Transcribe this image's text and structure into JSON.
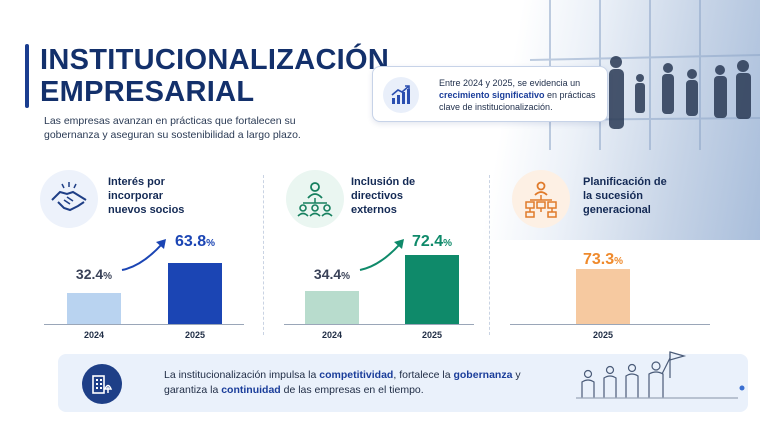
{
  "header": {
    "title_line1": "INSTITUCIONALIZACIÓN",
    "title_line2": "EMPRESARIAL",
    "subtitle": "Las empresas avanzan en prácticas que fortalecen su gobernanza y aseguran su sostenibilidad a largo plazo."
  },
  "callout": {
    "text_before": "Entre 2024 y 2025, se evidencia un ",
    "highlight": "crecimiento significativo",
    "text_after": " en prácticas clave de institucionalización."
  },
  "colors": {
    "navy": "#13306b",
    "card1_2024": "#b9d3f0",
    "card1_2025": "#1b45b4",
    "card2_2024": "#b8dccd",
    "card2_2025": "#0f8a6a",
    "card3_2025": "#f6c9a0",
    "card3_label": "#ef8a2c"
  },
  "chart_data": [
    {
      "type": "bar",
      "title": "Interés por incorporar nuevos socios",
      "categories": [
        "2024",
        "2025"
      ],
      "values": [
        32.4,
        63.8
      ],
      "unit": "%",
      "icon": "handshake-icon"
    },
    {
      "type": "bar",
      "title": "Inclusión de directivos externos",
      "categories": [
        "2024",
        "2025"
      ],
      "values": [
        34.4,
        72.4
      ],
      "unit": "%",
      "icon": "org-team-icon"
    },
    {
      "type": "bar",
      "title": "Planificación de la sucesión generacional",
      "categories": [
        "2025"
      ],
      "values": [
        73.3
      ],
      "unit": "%",
      "icon": "hierarchy-icon"
    }
  ],
  "cards": [
    {
      "title_l1": "Interés por",
      "title_l2": "incorporar",
      "title_l3": "nuevos socios",
      "v2024": "32.4",
      "v2025": "63.8",
      "pct": "%",
      "y2024": "2024",
      "y2025": "2025"
    },
    {
      "title_l1": "Inclusión de",
      "title_l2": "directivos",
      "title_l3": "externos",
      "v2024": "34.4",
      "v2025": "72.4",
      "pct": "%",
      "y2024": "2024",
      "y2025": "2025"
    },
    {
      "title_l1": "Planificación de",
      "title_l2": "la sucesión",
      "title_l3": "generacional",
      "v2025": "73.3",
      "pct": "%",
      "y2025": "2025"
    }
  ],
  "footer": {
    "t1": "La institucionalización impulsa la ",
    "k1": "competitividad",
    "t2": ", fortalece la ",
    "k2": "gobernanza",
    "t3": " y garantiza la ",
    "k3": "continuidad",
    "t4": " de las empresas en el tiempo."
  }
}
